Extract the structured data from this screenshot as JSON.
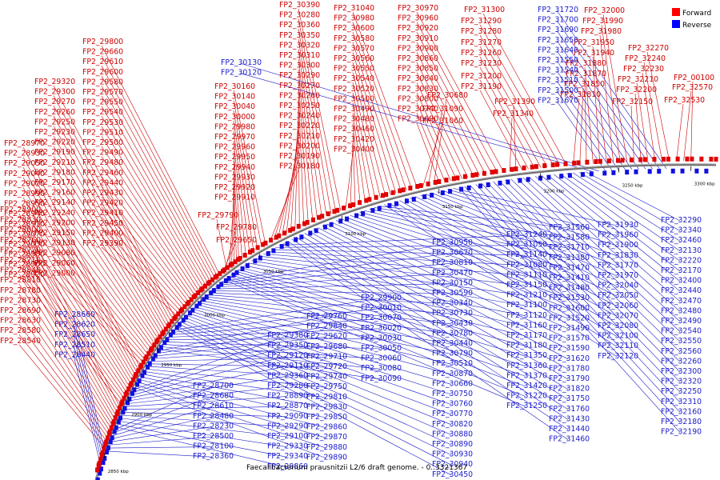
{
  "caption": "Faecalibacterium prausnitzii L2/6 draft genome. - 0..3321367",
  "legend": [
    {
      "label": "Forward",
      "color": "#ff0000"
    },
    {
      "label": "Reverse",
      "color": "#0000ff"
    }
  ],
  "colors": {
    "forward": "#cc0000",
    "reverse": "#1a1acc",
    "backbone": "#777777"
  },
  "tick_labels": [
    "2850 kbp",
    "2900 kbp",
    "2950 kbp",
    "3000 kbp",
    "3050 kbp",
    "3100 kbp",
    "3150 kbp",
    "3200 kbp",
    "3250 kbp",
    "3300 kbp"
  ],
  "forward_labels": [
    "FP2_00100",
    "FP2_32570",
    "FP2_32530",
    "FP2_32270",
    "FP2_32240",
    "FP2_32230",
    "FP2_32210",
    "FP2_32200",
    "FP2_32150",
    "FP2_32000",
    "FP2_31990",
    "FP2_31980",
    "FP2_31950",
    "FP2_31940",
    "FP2_31880",
    "FP2_31870",
    "FP2_31850",
    "FP2_31810",
    "FP2_31300",
    "FP2_31290",
    "FP2_31280",
    "FP2_31270",
    "FP2_31260",
    "FP2_31230",
    "FP2_31200",
    "FP2_31190",
    "FP2_31390",
    "FP2_31340",
    "FP2_30970",
    "FP2_30960",
    "FP2_30920",
    "FP2_30910",
    "FP2_30900",
    "FP2_30860",
    "FP2_30850",
    "FP2_30840",
    "FP2_30830",
    "FP2_30800",
    "FP2_30740",
    "FP2_30690",
    "FP2_30680",
    "FP2_31090",
    "FP2_31060",
    "FP2_31040",
    "FP2_30980",
    "FP2_30600",
    "FP2_30580",
    "FP2_30570",
    "FP2_30560",
    "FP2_30550",
    "FP2_30540",
    "FP2_30520",
    "FP2_30500",
    "FP2_30490",
    "FP2_30480",
    "FP2_30460",
    "FP2_30420",
    "FP2_30400",
    "FP2_30390",
    "FP2_30280",
    "FP2_30360",
    "FP2_30350",
    "FP2_30320",
    "FP2_30310",
    "FP2_30300",
    "FP2_30290",
    "FP2_30270",
    "FP2_30260",
    "FP2_30250",
    "FP2_30240",
    "FP2_30220",
    "FP2_30210",
    "FP2_30200",
    "FP2_30190",
    "FP2_30180",
    "FP2_30160",
    "FP2_30140",
    "FP2_30040",
    "FP2_30000",
    "FP2_29980",
    "FP2_29970",
    "FP2_29960",
    "FP2_29950",
    "FP2_29940",
    "FP2_29930",
    "FP2_29920",
    "FP2_29910",
    "FP2_29790",
    "FP2_29780",
    "FP2_29650",
    "FP2_29800",
    "FP2_29660",
    "FP2_29610",
    "FP2_29600",
    "FP2_29580",
    "FP2_29570",
    "FP2_29550",
    "FP2_29540",
    "FP2_29530",
    "FP2_29510",
    "FP2_29500",
    "FP2_29490",
    "FP2_29480",
    "FP2_29460",
    "FP2_29440",
    "FP2_29430",
    "FP2_29420",
    "FP2_29410",
    "FP2_29450",
    "FP2_29400",
    "FP2_29390",
    "FP2_29320",
    "FP2_29300",
    "FP2_29270",
    "FP2_29260",
    "FP2_29250",
    "FP2_29230",
    "FP2_29220",
    "FP2_29190",
    "FP2_29210",
    "FP2_29180",
    "FP2_29170",
    "FP2_29160",
    "FP2_29140",
    "FP2_29240",
    "FP2_29200",
    "FP2_29150",
    "FP2_29130",
    "FP2_29080",
    "FP2_29060",
    "FP2_29000",
    "FP2_28970",
    "FP2_28930",
    "FP2_29050",
    "FP2_29040",
    "FP2_29020",
    "FP2_28990",
    "FP2_28950",
    "FP2_28940",
    "FP2_28910",
    "FP2_29070",
    "FP2_29030",
    "FP2_28980",
    "FP2_28960",
    "FP2_28920",
    "FP2_28900",
    "FP2_28830",
    "FP2_28800",
    "FP2_28760",
    "FP2_28720",
    "FP2_28710",
    "FP2_28840",
    "FP2_28810",
    "FP2_28780",
    "FP2_28730",
    "FP2_28690",
    "FP2_28630",
    "FP2_28580",
    "FP2_28540",
    "FP2_28390",
    "FP2_28330",
    "FP2_28260",
    "FP2_28200",
    "FP2_28140",
    "FP2_28090"
  ],
  "reverse_labels": [
    "FP2_31720",
    "FP2_31700",
    "FP2_31690",
    "FP2_31650",
    "FP2_31640",
    "FP2_31550",
    "FP2_31540",
    "FP2_31510",
    "FP2_31500",
    "FP2_31670",
    "FP2_30130",
    "FP2_30120",
    "FP2_32290",
    "FP2_32340",
    "FP2_32460",
    "FP2_32130",
    "FP2_32220",
    "FP2_32170",
    "FP2_32400",
    "FP2_32440",
    "FP2_32470",
    "FP2_32480",
    "FP2_32490",
    "FP2_32540",
    "FP2_32550",
    "FP2_32560",
    "FP2_32260",
    "FP2_32300",
    "FP2_32320",
    "FP2_32250",
    "FP2_32310",
    "FP2_32160",
    "FP2_32180",
    "FP2_32190",
    "FP2_31930",
    "FP2_31960",
    "FP2_31900",
    "FP2_31830",
    "FP2_31770",
    "FP2_31970",
    "FP2_32040",
    "FP2_32050",
    "FP2_32060",
    "FP2_32070",
    "FP2_32080",
    "FP2_32100",
    "FP2_32110",
    "FP2_32120",
    "FP2_31560",
    "FP2_31580",
    "FP2_31710",
    "FP2_31380",
    "FP2_31470",
    "FP2_31410",
    "FP2_31480",
    "FP2_31530",
    "FP2_31600",
    "FP2_31520",
    "FP2_31490",
    "FP2_31570",
    "FP2_31590",
    "FP2_31620",
    "FP2_31780",
    "FP2_31790",
    "FP2_31820",
    "FP2_31750",
    "FP2_31760",
    "FP2_31430",
    "FP2_31440",
    "FP2_31460",
    "FP2_31240",
    "FP2_31050",
    "FP2_31140",
    "FP2_31080",
    "FP2_31110",
    "FP2_31150",
    "FP2_31210",
    "FP2_31100",
    "FP2_31120",
    "FP2_31160",
    "FP2_31170",
    "FP2_31180",
    "FP2_31350",
    "FP2_31360",
    "FP2_31370",
    "FP2_31420",
    "FP2_31220",
    "FP2_31250",
    "FP2_30950",
    "FP2_30670",
    "FP2_30810",
    "FP2_30470",
    "FP2_30150",
    "FP2_30590",
    "FP2_30340",
    "FP2_30730",
    "FP2_30430",
    "FP2_30780",
    "FP2_30440",
    "FP2_30790",
    "FP2_30510",
    "FP2_30870",
    "FP2_30660",
    "FP2_30750",
    "FP2_30760",
    "FP2_30770",
    "FP2_30820",
    "FP2_30880",
    "FP2_30890",
    "FP2_30930",
    "FP2_30940",
    "FP2_30450",
    "FP2_29900",
    "FP2_30010",
    "FP2_30070",
    "FP2_30020",
    "FP2_30030",
    "FP2_30050",
    "FP2_30060",
    "FP2_30080",
    "FP2_30090",
    "FP2_29760",
    "FP2_29840",
    "FP2_29620",
    "FP2_29680",
    "FP2_29710",
    "FP2_29720",
    "FP2_29740",
    "FP2_29750",
    "FP2_29810",
    "FP2_29830",
    "FP2_29850",
    "FP2_29860",
    "FP2_29870",
    "FP2_29880",
    "FP2_29890",
    "FP2_29380",
    "FP2_29350",
    "FP2_29120",
    "FP2_29110",
    "FP2_29360",
    "FP2_29280",
    "FP2_28890",
    "FP2_28870",
    "FP2_29090",
    "FP2_29290",
    "FP2_29100",
    "FP2_29330",
    "FP2_29340",
    "FP2_28860",
    "FP2_28700",
    "FP2_28680",
    "FP2_28610",
    "FP2_28480",
    "FP2_28230",
    "FP2_28500",
    "FP2_28100",
    "FP2_28360",
    "FP2_28660",
    "FP2_28620",
    "FP2_28650",
    "FP2_28510",
    "FP2_28440"
  ]
}
